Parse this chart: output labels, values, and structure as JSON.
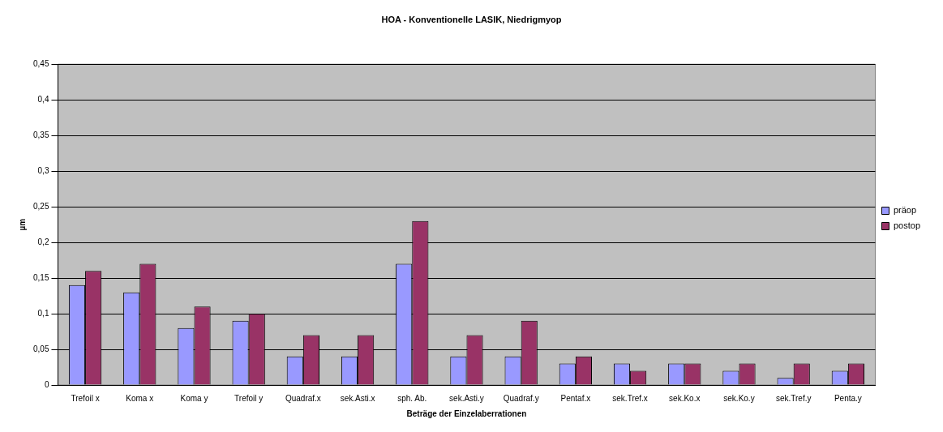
{
  "chart_data": {
    "type": "bar",
    "title": "HOA - Konventionelle LASIK, Niedrigmyop",
    "xlabel": "Beträge der Einzelaberrationen",
    "ylabel": "µm",
    "categories": [
      "Trefoil x",
      "Koma x",
      "Koma y",
      "Trefoil y",
      "Quadraf.x",
      "sek.Asti.x",
      "sph. Ab.",
      "sek.Asti.y",
      "Quadraf.y",
      "Pentaf.x",
      "sek.Tref.x",
      "sek.Ko.x",
      "sek.Ko.y",
      "sek.Tref.y",
      "Penta.y"
    ],
    "series": [
      {
        "name": "präop",
        "color": "#9999ff",
        "values": [
          0.14,
          0.13,
          0.08,
          0.09,
          0.04,
          0.04,
          0.17,
          0.04,
          0.04,
          0.03,
          0.03,
          0.03,
          0.02,
          0.01,
          0.02
        ]
      },
      {
        "name": "postop",
        "color": "#993366",
        "values": [
          0.16,
          0.17,
          0.11,
          0.1,
          0.07,
          0.07,
          0.23,
          0.07,
          0.09,
          0.04,
          0.02,
          0.03,
          0.03,
          0.03,
          0.03
        ]
      }
    ],
    "ylim": [
      0,
      0.45
    ],
    "yticks": [
      0,
      {
        "value": 0.05,
        "label": "0,05"
      },
      {
        "value": 0.1,
        "label": "0,1"
      },
      {
        "value": 0.15,
        "label": "0,15"
      },
      {
        "value": 0.2,
        "label": "0,2"
      },
      {
        "value": 0.25,
        "label": "0,25"
      },
      {
        "value": 0.3,
        "label": "0,3"
      },
      {
        "value": 0.35,
        "label": "0,35"
      },
      {
        "value": 0.4,
        "label": "0,4"
      },
      {
        "value": 0.45,
        "label": "0,45"
      }
    ],
    "grid": "y",
    "legend": "right"
  }
}
